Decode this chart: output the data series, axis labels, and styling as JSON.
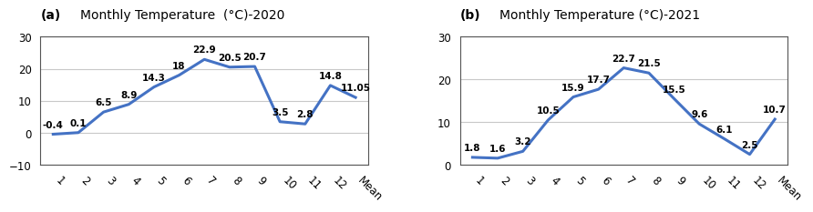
{
  "chart_a": {
    "title_a": "(a)",
    "title_b": "Monthly Temperature  (°C)-2020",
    "x_labels": [
      "1",
      "2",
      "3",
      "4",
      "5",
      "6",
      "7",
      "8",
      "9",
      "10",
      "11",
      "12",
      "Mean"
    ],
    "values": [
      -0.4,
      0.1,
      6.5,
      8.9,
      14.3,
      18,
      22.9,
      20.5,
      20.7,
      3.5,
      2.8,
      14.8,
      11.05
    ],
    "ylim": [
      -10,
      30
    ],
    "yticks": [
      -10,
      0,
      10,
      20,
      30
    ]
  },
  "chart_b": {
    "title_a": "(b)",
    "title_b": "Monthly Temperature (°C)-2021",
    "x_labels": [
      "1",
      "2",
      "3",
      "4",
      "5",
      "6",
      "7",
      "8",
      "9",
      "10",
      "11",
      "12",
      "Mean"
    ],
    "values": [
      1.8,
      1.6,
      3.2,
      10.5,
      15.9,
      17.7,
      22.7,
      21.5,
      15.5,
      9.6,
      6.1,
      2.5,
      10.7
    ],
    "ylim": [
      0,
      30
    ],
    "yticks": [
      0,
      10,
      20,
      30
    ]
  },
  "line_color": "#4472C4",
  "line_width": 2.2,
  "annotation_fontsize": 7.5,
  "title_fontsize": 10,
  "title_a_fontsize": 10,
  "tick_fontsize": 8.5,
  "bg_color": "#ffffff",
  "grid_color": "#c8c8c8",
  "spine_color": "#555555"
}
